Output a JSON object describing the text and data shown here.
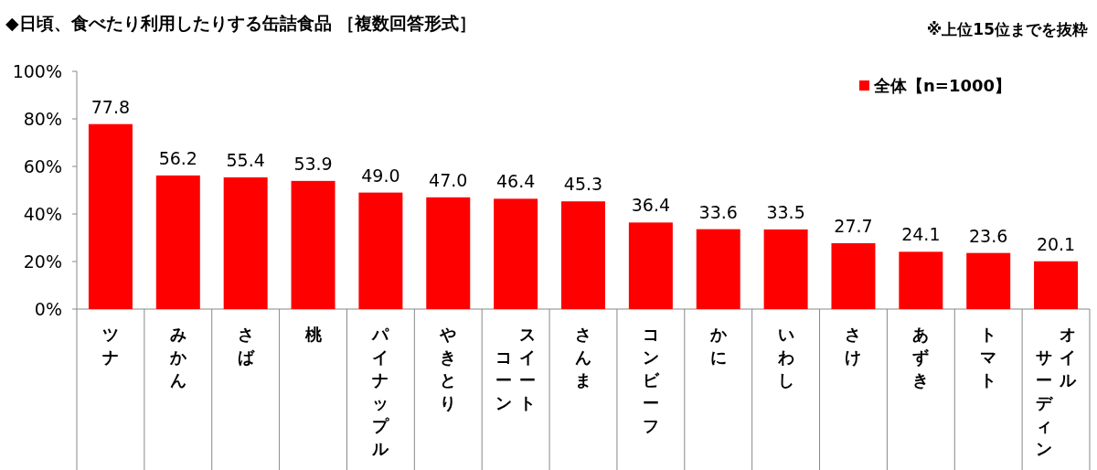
{
  "chart_data": {
    "type": "bar",
    "title": "◆日頃、食べたり利用したりする缶詰食品 ［複数回答形式］",
    "annotations": [
      "※上位15位までを抜粋"
    ],
    "categories": [
      "ツナ",
      "みかん",
      "さば",
      "桃",
      "パイナップル",
      "やきとり",
      "スイートコーン",
      "さんま",
      "コンビーフ",
      "かに",
      "いわし",
      "さけ",
      "あずき",
      "トマト",
      "オイルサーディン"
    ],
    "series": [
      {
        "name": "全体【n=1000】",
        "color": "#ff0000",
        "values": [
          77.8,
          56.2,
          55.4,
          53.9,
          49.0,
          47.0,
          46.4,
          45.3,
          36.4,
          33.6,
          33.5,
          27.7,
          24.1,
          23.6,
          20.1
        ]
      }
    ],
    "value_labels": [
      "77.8",
      "56.2",
      "55.4",
      "53.9",
      "49.0",
      "47.0",
      "46.4",
      "45.3",
      "36.4",
      "33.6",
      "33.5",
      "27.7",
      "24.1",
      "23.6",
      "20.1"
    ],
    "ylim": [
      0,
      100
    ],
    "yticks": [
      {
        "value": 0,
        "label": "0%"
      },
      {
        "value": 20,
        "label": "20%"
      },
      {
        "value": 40,
        "label": "40%"
      },
      {
        "value": 60,
        "label": "60%"
      },
      {
        "value": 80,
        "label": "80%"
      },
      {
        "value": 100,
        "label": "100%"
      }
    ],
    "grid": false,
    "legend": "top right"
  }
}
